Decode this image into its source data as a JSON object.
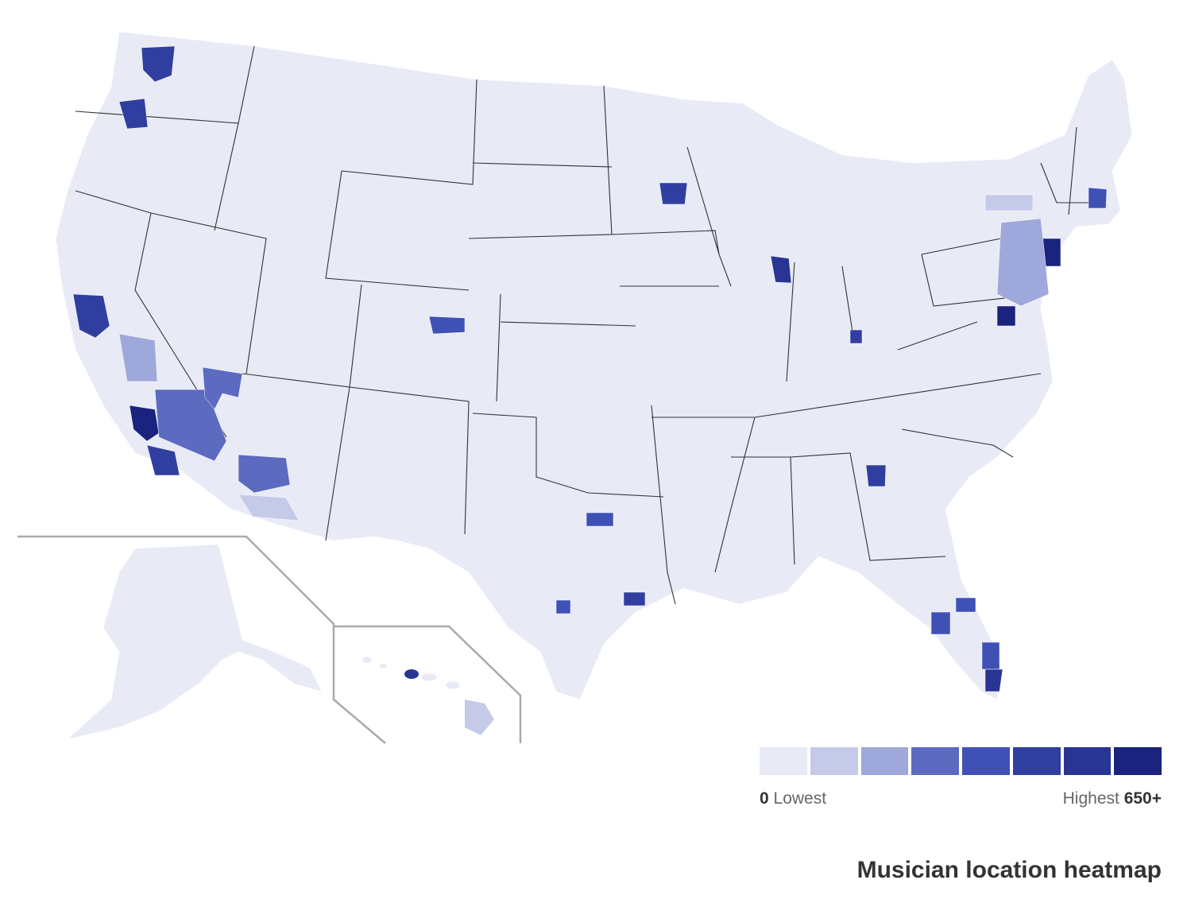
{
  "title": "Musician location heatmap",
  "legend": {
    "low_value": "0",
    "low_label": "Lowest",
    "high_label": "Highest",
    "high_value": "650+",
    "scale_colors": [
      "#e8eaf6",
      "#c5cae9",
      "#9fa8da",
      "#5c6bc0",
      "#3f51b5",
      "#303f9f",
      "#283593",
      "#1a237e"
    ]
  },
  "colors": {
    "base_land": "#e8eaf6",
    "state_border": "#333333",
    "inset_frame": "#aaaaaa"
  },
  "regions": [
    {
      "name": "Los Angeles",
      "level": 8
    },
    {
      "name": "New York City",
      "level": 8
    },
    {
      "name": "Washington DC",
      "level": 8
    },
    {
      "name": "Chicago",
      "level": 7
    },
    {
      "name": "Miami",
      "level": 7
    },
    {
      "name": "San Francisco Bay Area",
      "level": 6
    },
    {
      "name": "Seattle",
      "level": 6
    },
    {
      "name": "Portland",
      "level": 6
    },
    {
      "name": "Nashville",
      "level": 6
    },
    {
      "name": "Atlanta",
      "level": 6
    },
    {
      "name": "Houston",
      "level": 6
    },
    {
      "name": "Dallas",
      "level": 5
    },
    {
      "name": "Austin",
      "level": 5
    },
    {
      "name": "Denver",
      "level": 5
    },
    {
      "name": "Phoenix",
      "level": 4
    },
    {
      "name": "Las Vegas",
      "level": 4
    },
    {
      "name": "San Bernardino",
      "level": 4
    },
    {
      "name": "San Diego",
      "level": 6
    },
    {
      "name": "Minneapolis",
      "level": 6
    },
    {
      "name": "Philadelphia",
      "level": 6
    },
    {
      "name": "Boston",
      "level": 5
    },
    {
      "name": "Orlando",
      "level": 5
    },
    {
      "name": "Tampa",
      "level": 5
    },
    {
      "name": "Honolulu",
      "level": 6
    }
  ]
}
